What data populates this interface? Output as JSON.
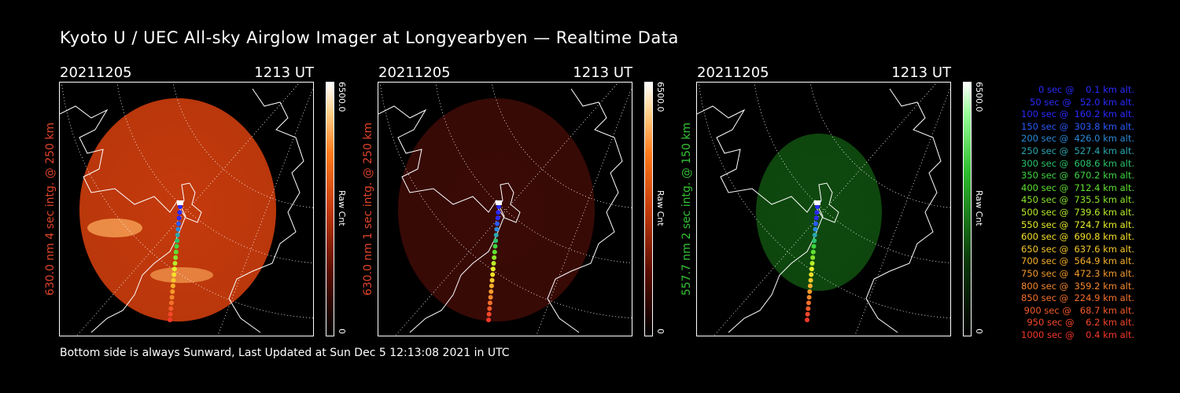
{
  "title": "Kyoto U / UEC All-sky Airglow Imager at Longyearbyen — Realtime Data",
  "footer": "Bottom side is always Sunward, Last Updated at Sun Dec  5 12:13:08 2021 in UTC",
  "panels": [
    {
      "date": "20211205",
      "time": "1213 UT",
      "ylabel": "630.0 nm 4 sec intg. @ 250 km",
      "label_color": "#e0432a",
      "colorbar": {
        "max": "6500.0",
        "min": "0",
        "unit": "Raw Cnt",
        "color": "#ff5a00"
      },
      "emission_color": "#c43a0c",
      "brightness": "bright"
    },
    {
      "date": "20211205",
      "time": "1213 UT",
      "ylabel": "630.0 nm 1 sec intg. @ 250 km",
      "label_color": "#e0432a",
      "colorbar": {
        "max": "6500.0",
        "min": "0",
        "unit": "Raw Cnt",
        "color": "#ff5a00"
      },
      "emission_color": "#3a0a06",
      "brightness": "dim"
    },
    {
      "date": "20211205",
      "time": "1213 UT",
      "ylabel": "557.7 nm 2 sec intg. @ 150 km",
      "label_color": "#33c433",
      "colorbar": {
        "max": "6500.0",
        "min": "0",
        "unit": "Raw Cnt",
        "color": "#2fbf2f"
      },
      "emission_color": "#0f4a0f",
      "brightness": "medium"
    }
  ],
  "legend": [
    {
      "text": "   0 sec @    0.1 km alt.",
      "color": "#2a2aff"
    },
    {
      "text": "  50 sec @   52.0 km alt.",
      "color": "#2a2aff"
    },
    {
      "text": " 100 sec @  160.2 km alt.",
      "color": "#2a2aff"
    },
    {
      "text": " 150 sec @  303.8 km alt.",
      "color": "#2a5aff"
    },
    {
      "text": " 200 sec @  426.0 km alt.",
      "color": "#2a8ad8"
    },
    {
      "text": " 250 sec @  527.4 km alt.",
      "color": "#2aa6b0"
    },
    {
      "text": " 300 sec @  608.6 km alt.",
      "color": "#2ac46a"
    },
    {
      "text": " 350 sec @  670.2 km alt.",
      "color": "#3fd640"
    },
    {
      "text": " 400 sec @  712.4 km alt.",
      "color": "#5fe030"
    },
    {
      "text": " 450 sec @  735.5 km alt.",
      "color": "#8ae62a"
    },
    {
      "text": " 500 sec @  739.6 km alt.",
      "color": "#b8ee2a"
    },
    {
      "text": " 550 sec @  724.7 km alt.",
      "color": "#e6ee2a"
    },
    {
      "text": " 600 sec @  690.8 km alt.",
      "color": "#f5e02a"
    },
    {
      "text": " 650 sec @  637.6 km alt.",
      "color": "#f5c82a"
    },
    {
      "text": " 700 sec @  564.9 km alt.",
      "color": "#f5b02a"
    },
    {
      "text": " 750 sec @  472.3 km alt.",
      "color": "#f59a2a"
    },
    {
      "text": " 800 sec @  359.2 km alt.",
      "color": "#f5862a"
    },
    {
      "text": " 850 sec @  224.9 km alt.",
      "color": "#f5702a"
    },
    {
      "text": " 900 sec @   68.7 km alt.",
      "color": "#f55a2a"
    },
    {
      "text": " 950 sec @    6.2 km alt.",
      "color": "#f5482a"
    },
    {
      "text": "1000 sec @    0.4 km alt.",
      "color": "#f5382a"
    }
  ]
}
